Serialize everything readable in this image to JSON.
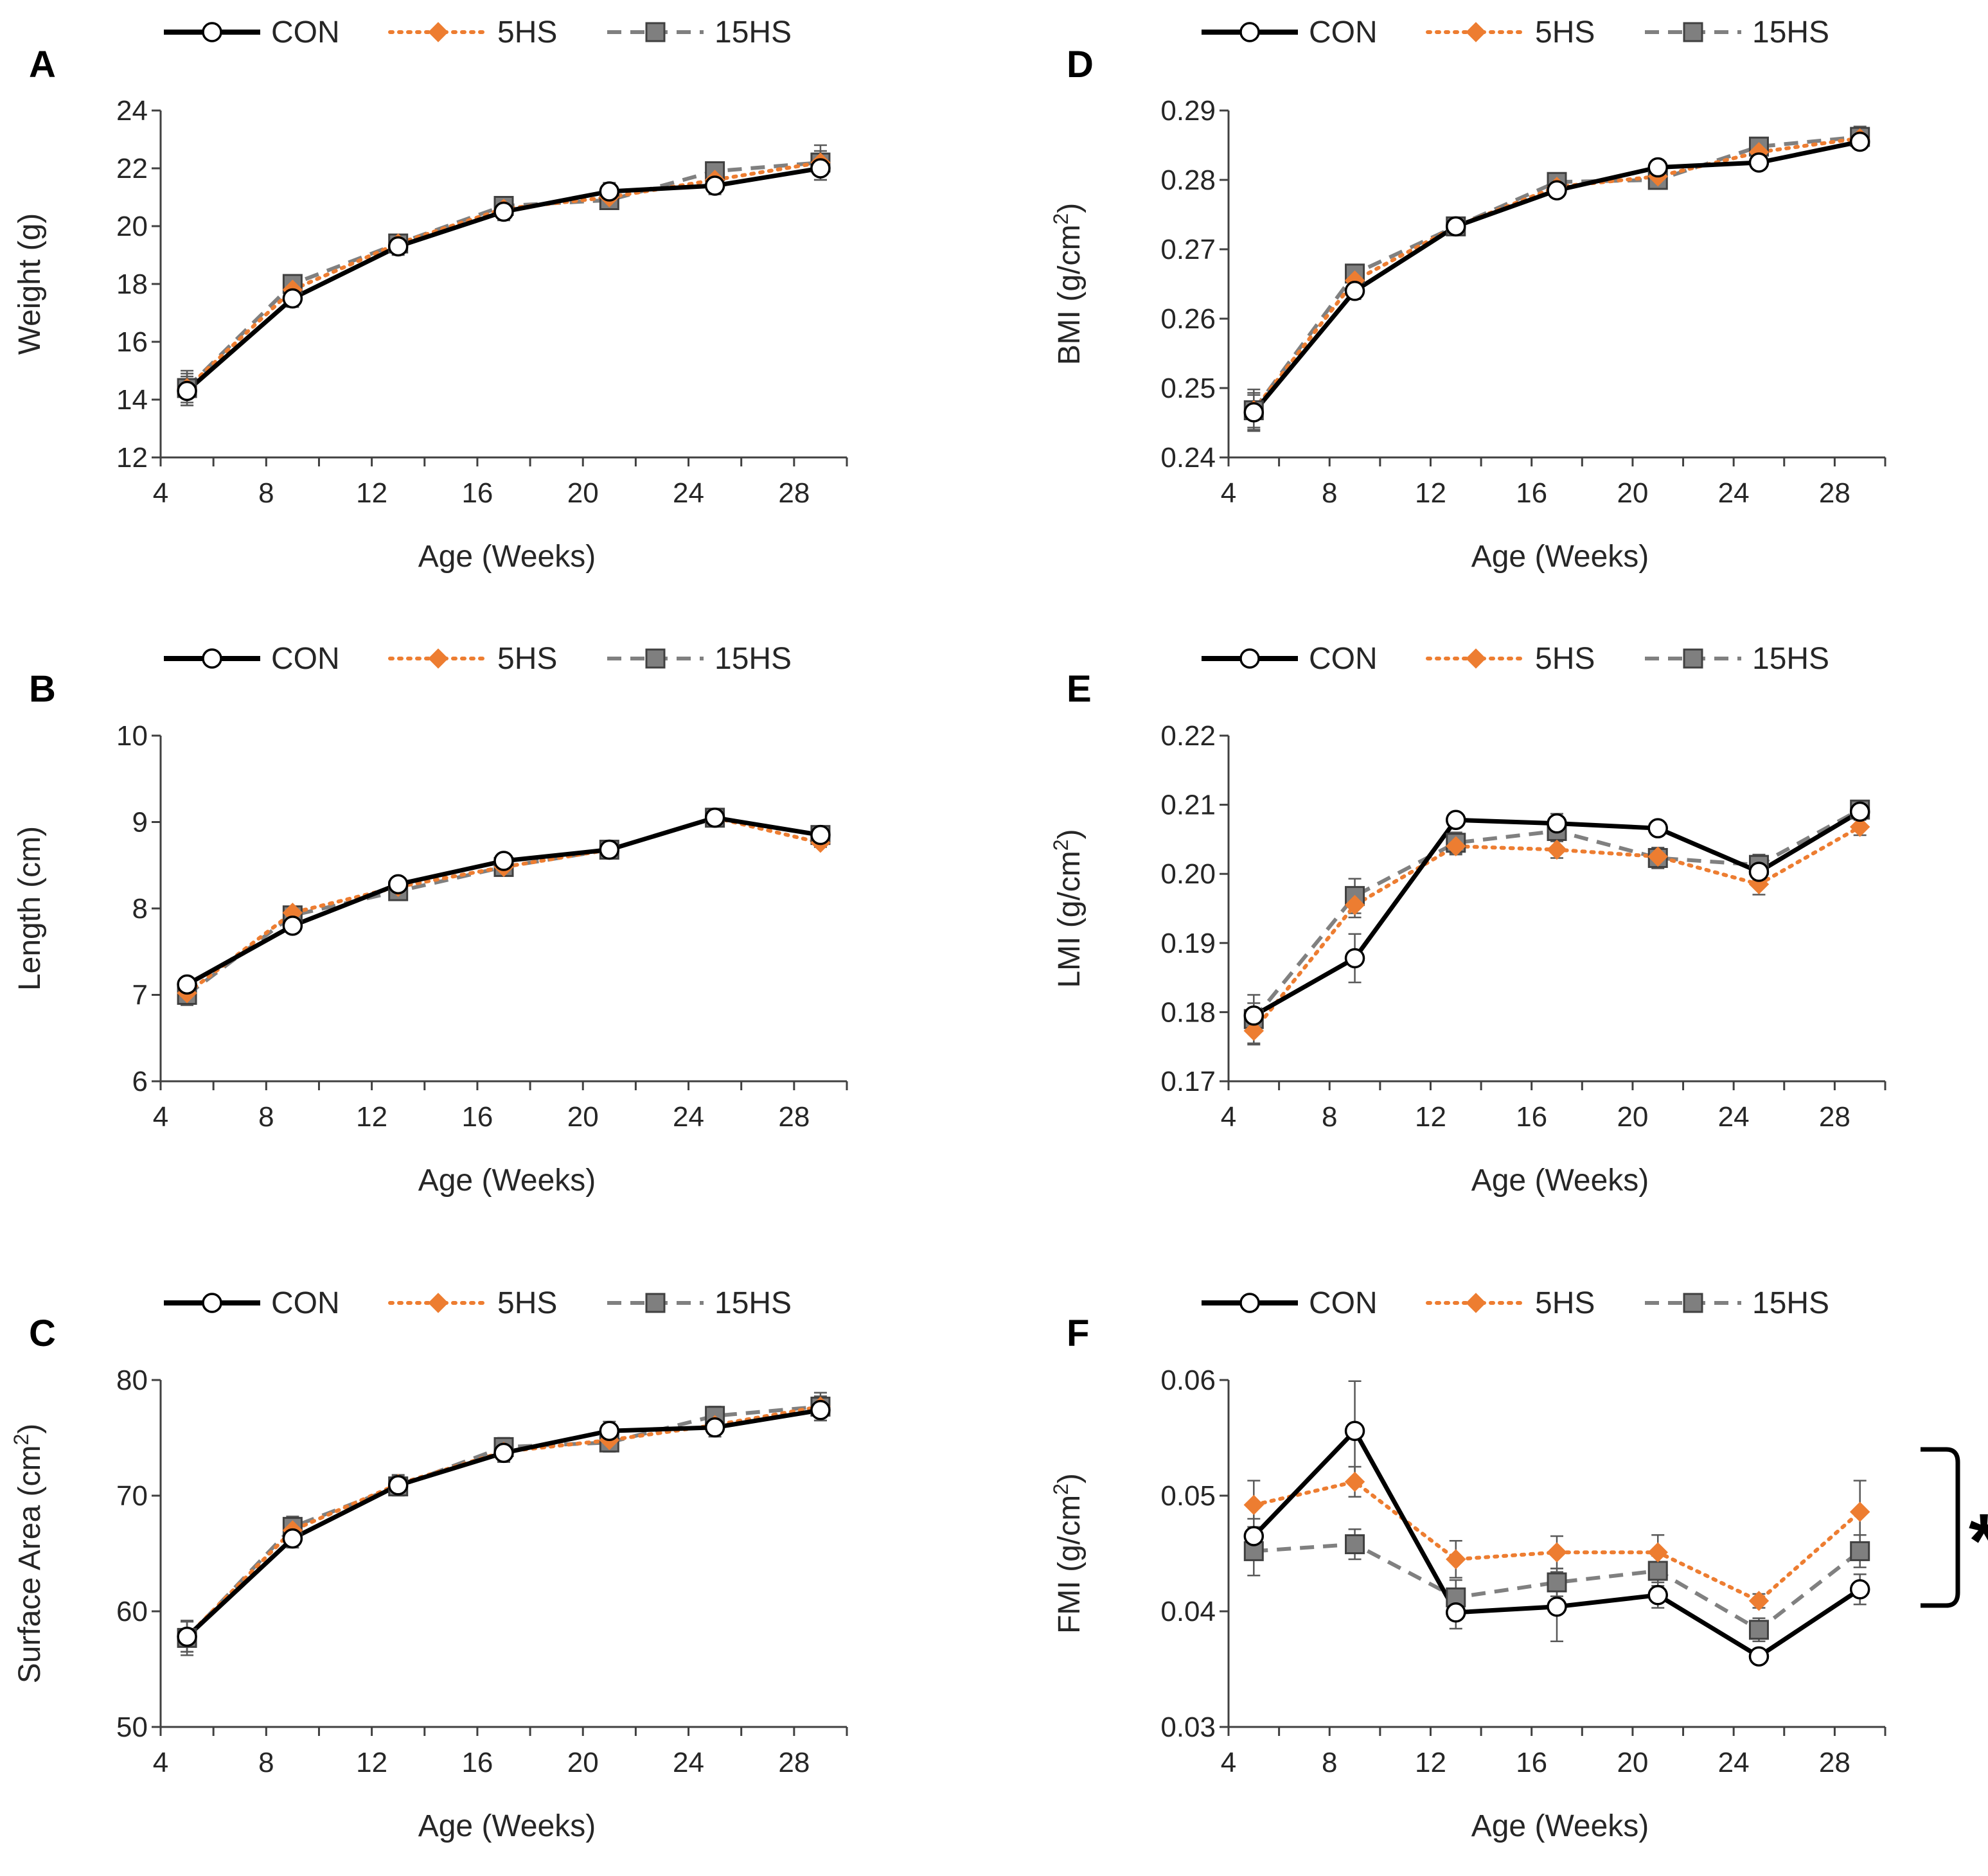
{
  "series_style": {
    "CON": {
      "color": "#000000",
      "marker": "circle",
      "fill": "#ffffff",
      "dash": "none"
    },
    "5HS": {
      "color": "#ED7D31",
      "marker": "diamond",
      "fill": "#ED7D31",
      "dash": "dotted"
    },
    "15HS": {
      "color": "#808080",
      "marker": "square",
      "fill": "#7F7F7F",
      "dash": "dashed"
    }
  },
  "legend": [
    "CON",
    "5HS",
    "15HS"
  ],
  "chart_data": [
    {
      "panel": "A",
      "type": "line",
      "xlabel": "Age (Weeks)",
      "ylabel": "Weight (g)",
      "xlim": [
        4,
        30
      ],
      "xticks": [
        4,
        8,
        12,
        16,
        20,
        24,
        28
      ],
      "ylim": [
        12,
        24
      ],
      "yticks": [
        12,
        14,
        16,
        18,
        20,
        22,
        24
      ],
      "ydecimals": 0,
      "x": [
        5,
        9,
        13,
        17,
        21,
        25,
        29
      ],
      "series": [
        {
          "name": "CON",
          "values": [
            14.3,
            17.5,
            19.3,
            20.5,
            21.2,
            21.4,
            22.0
          ],
          "err": [
            0.5,
            0.3,
            0.3,
            0.3,
            0.3,
            0.3,
            0.4
          ]
        },
        {
          "name": "5HS",
          "values": [
            14.4,
            17.8,
            19.4,
            20.6,
            21.0,
            21.6,
            22.2
          ],
          "err": [
            0.5,
            0.3,
            0.3,
            0.3,
            0.3,
            0.3,
            0.4
          ]
        },
        {
          "name": "15HS",
          "values": [
            14.4,
            18.0,
            19.4,
            20.7,
            20.9,
            21.9,
            22.2
          ],
          "err": [
            0.6,
            0.3,
            0.3,
            0.3,
            0.3,
            0.3,
            0.6
          ]
        }
      ]
    },
    {
      "panel": "B",
      "type": "line",
      "xlabel": "Age (Weeks)",
      "ylabel": "Length (cm)",
      "xlim": [
        4,
        30
      ],
      "xticks": [
        4,
        8,
        12,
        16,
        20,
        24,
        28
      ],
      "ylim": [
        6,
        10
      ],
      "yticks": [
        6,
        7,
        8,
        9,
        10
      ],
      "ydecimals": 0,
      "x": [
        5,
        9,
        13,
        17,
        21,
        25,
        29
      ],
      "series": [
        {
          "name": "CON",
          "values": [
            7.12,
            7.8,
            8.28,
            8.55,
            8.68,
            9.05,
            8.85
          ],
          "err": [
            0.06,
            0.05,
            0.05,
            0.05,
            0.05,
            0.05,
            0.05
          ]
        },
        {
          "name": "5HS",
          "values": [
            7.02,
            7.95,
            8.25,
            8.48,
            8.68,
            9.05,
            8.76
          ],
          "err": [
            0.08,
            0.05,
            0.05,
            0.05,
            0.05,
            0.05,
            0.05
          ]
        },
        {
          "name": "15HS",
          "values": [
            7.0,
            7.92,
            8.2,
            8.48,
            8.68,
            9.05,
            8.85
          ],
          "err": [
            0.12,
            0.06,
            0.05,
            0.05,
            0.05,
            0.05,
            0.05
          ]
        }
      ]
    },
    {
      "panel": "C",
      "type": "line",
      "xlabel": "Age (Weeks)",
      "ylabel": "Surface Area (cm²)",
      "xlim": [
        4,
        30
      ],
      "xticks": [
        4,
        8,
        12,
        16,
        20,
        24,
        28
      ],
      "ylim": [
        50,
        80
      ],
      "yticks": [
        50,
        60,
        70,
        80
      ],
      "ydecimals": 0,
      "x": [
        5,
        9,
        13,
        17,
        21,
        25,
        29
      ],
      "series": [
        {
          "name": "CON",
          "values": [
            57.8,
            66.3,
            70.9,
            73.7,
            75.6,
            75.9,
            77.4
          ],
          "err": [
            1.3,
            0.8,
            0.8,
            0.8,
            0.8,
            0.8,
            0.9
          ]
        },
        {
          "name": "5HS",
          "values": [
            57.8,
            67.0,
            71.0,
            73.8,
            74.8,
            76.1,
            77.7
          ],
          "err": [
            1.3,
            0.8,
            0.8,
            0.8,
            0.8,
            0.8,
            0.9
          ]
        },
        {
          "name": "15HS",
          "values": [
            57.7,
            67.3,
            70.8,
            74.2,
            74.6,
            76.9,
            77.7
          ],
          "err": [
            1.5,
            0.9,
            0.8,
            0.8,
            0.8,
            0.8,
            1.2
          ]
        }
      ]
    },
    {
      "panel": "D",
      "type": "line",
      "xlabel": "Age (Weeks)",
      "ylabel": "BMI (g/cm²)",
      "xlim": [
        4,
        30
      ],
      "xticks": [
        4,
        8,
        12,
        16,
        20,
        24,
        28
      ],
      "ylim": [
        0.24,
        0.29
      ],
      "yticks": [
        0.24,
        0.25,
        0.26,
        0.27,
        0.28,
        0.29
      ],
      "ydecimals": 2,
      "x": [
        5,
        9,
        13,
        17,
        21,
        25,
        29
      ],
      "series": [
        {
          "name": "CON",
          "values": [
            0.2465,
            0.264,
            0.2733,
            0.2785,
            0.2818,
            0.2825,
            0.2855
          ],
          "err": [
            0.0025,
            0.0012,
            0.0008,
            0.0008,
            0.0008,
            0.0008,
            0.001
          ]
        },
        {
          "name": "5HS",
          "values": [
            0.2468,
            0.2655,
            0.2733,
            0.279,
            0.2805,
            0.284,
            0.286
          ],
          "err": [
            0.0025,
            0.0012,
            0.0008,
            0.0008,
            0.0008,
            0.0008,
            0.001
          ]
        },
        {
          "name": "15HS",
          "values": [
            0.2468,
            0.2665,
            0.2733,
            0.2797,
            0.28,
            0.2848,
            0.2862
          ],
          "err": [
            0.003,
            0.0012,
            0.0008,
            0.0008,
            0.0008,
            0.0008,
            0.0015
          ]
        }
      ]
    },
    {
      "panel": "E",
      "type": "line",
      "xlabel": "Age (Weeks)",
      "ylabel": "LMI (g/cm²)",
      "xlim": [
        4,
        30
      ],
      "xticks": [
        4,
        8,
        12,
        16,
        20,
        24,
        28
      ],
      "ylim": [
        0.17,
        0.22
      ],
      "yticks": [
        0.17,
        0.18,
        0.19,
        0.2,
        0.21,
        0.22
      ],
      "ydecimals": 2,
      "x": [
        5,
        9,
        13,
        17,
        21,
        25,
        29
      ],
      "series": [
        {
          "name": "CON",
          "values": [
            0.1795,
            0.1878,
            0.2078,
            0.2073,
            0.2066,
            0.2003,
            0.209
          ],
          "err": [
            0.0018,
            0.0035,
            0.001,
            0.001,
            0.001,
            0.0012,
            0.0012
          ]
        },
        {
          "name": "5HS",
          "values": [
            0.1773,
            0.1955,
            0.204,
            0.2035,
            0.2025,
            0.1985,
            0.2068
          ],
          "err": [
            0.002,
            0.0018,
            0.0012,
            0.0012,
            0.0012,
            0.0015,
            0.0012
          ]
        },
        {
          "name": "15HS",
          "values": [
            0.179,
            0.1968,
            0.2045,
            0.2062,
            0.2023,
            0.2013,
            0.2093
          ],
          "err": [
            0.0035,
            0.0025,
            0.0015,
            0.0025,
            0.0015,
            0.0015,
            0.0012
          ]
        }
      ]
    },
    {
      "panel": "F",
      "type": "line",
      "xlabel": "Age (Weeks)",
      "ylabel": "FMI (g/cm²)",
      "xlim": [
        4,
        30
      ],
      "xticks": [
        4,
        8,
        12,
        16,
        20,
        24,
        28
      ],
      "ylim": [
        0.03,
        0.06
      ],
      "yticks": [
        0.03,
        0.04,
        0.05,
        0.06
      ],
      "ydecimals": 2,
      "x": [
        5,
        9,
        13,
        17,
        21,
        25,
        29
      ],
      "series": [
        {
          "name": "CON",
          "values": [
            0.0465,
            0.0556,
            0.0399,
            0.0404,
            0.0414,
            0.0361,
            0.0419
          ],
          "err": [
            0.0015,
            0.0043,
            0.0014,
            0.003,
            0.0011,
            0.0006,
            0.0013
          ]
        },
        {
          "name": "5HS",
          "values": [
            0.0492,
            0.0512,
            0.0445,
            0.0451,
            0.0451,
            0.0409,
            0.0486
          ],
          "err": [
            0.0021,
            0.0013,
            0.0016,
            0.0014,
            0.0015,
            0.0006,
            0.0027
          ]
        },
        {
          "name": "15HS",
          "values": [
            0.0452,
            0.0458,
            0.0412,
            0.0425,
            0.0435,
            0.0384,
            0.0452
          ],
          "err": [
            0.0021,
            0.0013,
            0.0015,
            0.0012,
            0.0013,
            0.001,
            0.0014
          ]
        }
      ],
      "significance": {
        "label": "*",
        "bracket_from": 0.054,
        "bracket_to": 0.0405
      }
    }
  ]
}
